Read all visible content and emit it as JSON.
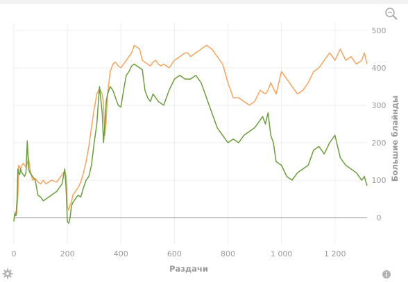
{
  "chart_data": {
    "type": "line",
    "xlabel": "Раздачи",
    "ylabel": "Большие блайнды",
    "xlim": [
      0,
      1320
    ],
    "ylim": [
      -70,
      520
    ],
    "x_ticks": [
      0,
      200,
      400,
      600,
      800,
      1000,
      1200
    ],
    "x_tick_labels": [
      "0",
      "200",
      "400",
      "600",
      "800",
      "1 000",
      "1 200"
    ],
    "y_ticks": [
      0,
      100,
      200,
      300,
      400,
      500
    ],
    "y_tick_labels": [
      "0",
      "100",
      "200",
      "300",
      "400",
      "500"
    ],
    "grid": true,
    "legend": "none",
    "series": [
      {
        "color": "#f7a35c",
        "x": [
          0,
          5,
          10,
          15,
          18,
          22,
          25,
          30,
          35,
          40,
          45,
          50,
          55,
          60,
          70,
          80,
          90,
          100,
          110,
          120,
          140,
          160,
          180,
          190,
          195,
          200,
          205,
          210,
          215,
          220,
          230,
          240,
          250,
          260,
          270,
          280,
          290,
          300,
          310,
          320,
          330,
          335,
          340,
          345,
          350,
          360,
          370,
          380,
          390,
          400,
          410,
          420,
          430,
          440,
          450,
          460,
          470,
          480,
          490,
          500,
          510,
          520,
          530,
          540,
          550,
          560,
          580,
          600,
          620,
          640,
          650,
          660,
          680,
          700,
          720,
          740,
          760,
          780,
          800,
          820,
          840,
          860,
          880,
          900,
          920,
          940,
          950,
          960,
          980,
          1000,
          1020,
          1040,
          1060,
          1080,
          1100,
          1120,
          1140,
          1160,
          1180,
          1190,
          1200,
          1220,
          1240,
          1260,
          1280,
          1300,
          1310,
          1320
        ],
        "y": [
          -5,
          15,
          10,
          60,
          140,
          135,
          130,
          140,
          145,
          140,
          135,
          145,
          160,
          130,
          100,
          105,
          95,
          90,
          100,
          90,
          100,
          95,
          115,
          125,
          110,
          30,
          20,
          35,
          40,
          60,
          70,
          80,
          95,
          120,
          150,
          190,
          240,
          290,
          330,
          345,
          330,
          300,
          220,
          260,
          330,
          390,
          410,
          415,
          405,
          400,
          410,
          420,
          430,
          440,
          460,
          455,
          450,
          420,
          415,
          410,
          405,
          415,
          420,
          410,
          405,
          410,
          400,
          420,
          430,
          440,
          440,
          430,
          440,
          450,
          460,
          450,
          430,
          410,
          360,
          320,
          320,
          310,
          300,
          310,
          340,
          330,
          340,
          360,
          330,
          390,
          370,
          350,
          330,
          340,
          360,
          390,
          400,
          420,
          440,
          430,
          420,
          450,
          420,
          430,
          410,
          420,
          440,
          410
        ]
      },
      {
        "color": "#6a9e3a",
        "x": [
          0,
          3,
          8,
          12,
          15,
          18,
          22,
          25,
          30,
          35,
          40,
          45,
          50,
          55,
          60,
          70,
          80,
          90,
          100,
          110,
          120,
          140,
          160,
          180,
          190,
          195,
          200,
          205,
          210,
          215,
          220,
          230,
          240,
          250,
          260,
          270,
          280,
          290,
          300,
          310,
          320,
          330,
          335,
          340,
          345,
          350,
          360,
          370,
          380,
          390,
          400,
          410,
          420,
          430,
          440,
          450,
          460,
          470,
          480,
          490,
          500,
          510,
          520,
          530,
          540,
          560,
          580,
          600,
          620,
          640,
          660,
          680,
          700,
          720,
          740,
          760,
          780,
          800,
          820,
          840,
          860,
          880,
          900,
          920,
          930,
          940,
          950,
          960,
          970,
          980,
          1000,
          1020,
          1040,
          1060,
          1080,
          1100,
          1120,
          1140,
          1160,
          1180,
          1200,
          1220,
          1240,
          1260,
          1280,
          1300,
          1310,
          1320
        ],
        "y": [
          -10,
          10,
          5,
          50,
          130,
          120,
          115,
          130,
          120,
          115,
          110,
          120,
          205,
          130,
          120,
          110,
          100,
          60,
          55,
          45,
          50,
          60,
          70,
          90,
          130,
          80,
          -10,
          -15,
          0,
          30,
          40,
          50,
          60,
          55,
          80,
          100,
          110,
          140,
          200,
          250,
          350,
          280,
          200,
          250,
          310,
          330,
          350,
          340,
          320,
          300,
          295,
          340,
          380,
          390,
          405,
          410,
          405,
          400,
          395,
          340,
          320,
          310,
          330,
          320,
          310,
          300,
          340,
          370,
          380,
          370,
          370,
          380,
          360,
          320,
          280,
          240,
          220,
          200,
          210,
          200,
          220,
          230,
          240,
          260,
          270,
          250,
          280,
          220,
          200,
          150,
          140,
          110,
          100,
          120,
          130,
          140,
          180,
          190,
          170,
          200,
          220,
          160,
          140,
          130,
          120,
          100,
          110,
          85
        ]
      }
    ]
  },
  "icons": {
    "zoom": "zoom-icon",
    "settings": "gear-icon",
    "info": "info-icon"
  }
}
